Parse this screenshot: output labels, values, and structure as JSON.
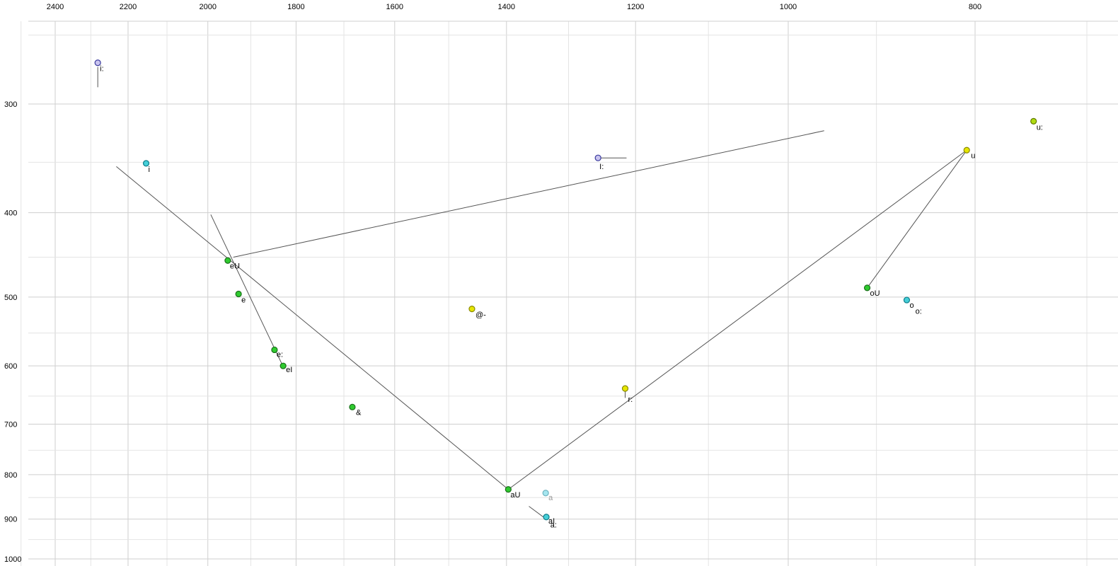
{
  "chart_data": {
    "type": "scatter",
    "title": "",
    "description": "Vowel formant plot (F2 horizontal reversed log scale in Hz, F1 vertical log scale in Hz) with diphthong trajectory lines",
    "x_axis": {
      "unit": "Hz",
      "scale": "log",
      "reversed": true,
      "major_ticks": [
        2400,
        2200,
        2000,
        1800,
        1600,
        1400,
        1200,
        1000,
        800
      ],
      "minor_step": 100,
      "minor_from": 2500,
      "minor_to": 700
    },
    "y_axis": {
      "unit": "Hz",
      "scale": "log",
      "reversed": false,
      "major_ticks": [
        300,
        400,
        500,
        600,
        700,
        800,
        900,
        1000
      ],
      "minor_step": 50,
      "minor_from": 250,
      "minor_to": 1000
    },
    "grid": true,
    "style": {
      "background": "#ffffff",
      "grid_minor_color": "#e4e4e4",
      "grid_major_color": "#cfcfcf",
      "trace_color": "#555555",
      "tick_label_color": "#000000",
      "point_label_color": "#000000"
    },
    "palette": {
      "green": {
        "fill": "#2fca2f",
        "stroke": "#1a6e1a"
      },
      "yellow": {
        "fill": "#e6e600",
        "stroke": "#8a8a00"
      },
      "yellowgreen": {
        "fill": "#b0dc10",
        "stroke": "#5f7a00"
      },
      "cyan": {
        "fill": "#45cfd8",
        "stroke": "#0e7d8a"
      },
      "lightcyan": {
        "fill": "#a5e6ef",
        "stroke": "#6fb3c0"
      },
      "lavender": {
        "fill": "#c9c4ef",
        "stroke": "#3b3b9e"
      }
    },
    "points": [
      {
        "label": "i:",
        "f2": 2281,
        "f1": 269,
        "color_key": "lavender",
        "marker": true,
        "label_offset": [
          3,
          12
        ]
      },
      {
        "label": "i",
        "f2": 2153,
        "f1": 351,
        "color_key": "cyan",
        "marker": true,
        "label_offset": [
          3,
          12
        ]
      },
      {
        "label": "I:",
        "f2": 1255,
        "f1": 346,
        "color_key": "lavender",
        "marker": true,
        "label_offset": [
          2,
          16
        ]
      },
      {
        "label": "u:",
        "f2": 746,
        "f1": 314,
        "color_key": "yellowgreen",
        "marker": true,
        "label_offset": [
          4,
          12
        ]
      },
      {
        "label": "u",
        "f2": 808,
        "f1": 339,
        "color_key": "yellow",
        "marker": true,
        "label_offset": [
          6,
          11
        ]
      },
      {
        "label": "eU",
        "f2": 1953,
        "f1": 454,
        "color_key": "green",
        "marker": true,
        "label_offset": [
          3,
          11
        ]
      },
      {
        "label": "e",
        "f2": 1928,
        "f1": 496,
        "color_key": "green",
        "marker": true,
        "label_offset": [
          4,
          12
        ]
      },
      {
        "label": "@-",
        "f2": 1459,
        "f1": 516,
        "color_key": "yellow",
        "marker": true,
        "label_offset": [
          5,
          12
        ]
      },
      {
        "label": "e:",
        "f2": 1847,
        "f1": 575,
        "color_key": "green",
        "marker": true,
        "label_offset": [
          3,
          10
        ]
      },
      {
        "label": "eI",
        "f2": 1828,
        "f1": 600,
        "color_key": "green",
        "marker": true,
        "label_offset": [
          4,
          9
        ]
      },
      {
        "label": "r:",
        "f2": 1215,
        "f1": 637,
        "color_key": "yellow",
        "marker": true,
        "label_offset": [
          4,
          19
        ]
      },
      {
        "label": "&",
        "f2": 1683,
        "f1": 669,
        "color_key": "green",
        "marker": true,
        "label_offset": [
          5,
          11
        ]
      },
      {
        "label": "aU",
        "f2": 1397,
        "f1": 832,
        "color_key": "green",
        "marker": true,
        "label_offset": [
          3,
          11
        ]
      },
      {
        "label": "a",
        "f2": 1336,
        "f1": 840,
        "color_key": "lightcyan",
        "marker": true,
        "label_offset": [
          4,
          10
        ],
        "label_color": "#9a9a9a"
      },
      {
        "label": "aI",
        "f2": 1335,
        "f1": 895,
        "color_key": "cyan",
        "marker": true,
        "label_offset": [
          3,
          9
        ]
      },
      {
        "label": "a:",
        "f2": 1332,
        "f1": 903,
        "color_key": "cyan",
        "marker": false,
        "label_offset": [
          3,
          10
        ]
      },
      {
        "label": "oU",
        "f2": 910,
        "f1": 488,
        "color_key": "green",
        "marker": true,
        "label_offset": [
          4,
          11
        ]
      },
      {
        "label": "o",
        "f2": 868,
        "f1": 504,
        "color_key": "cyan",
        "marker": true,
        "label_offset": [
          4,
          11
        ]
      },
      {
        "label": "o:",
        "f2": 862,
        "f1": 514,
        "color_key": "cyan",
        "marker": false,
        "label_offset": [
          4,
          9
        ]
      }
    ],
    "segments": [
      {
        "name": "front-closing-trajectory",
        "from": [
          2231,
          354
        ],
        "to": [
          1397,
          832
        ]
      },
      {
        "name": "eU-offglide-trajectory",
        "from": [
          1940,
          450
        ],
        "to": [
          958,
          322
        ]
      },
      {
        "name": "eI-onglide-trajectory",
        "from": [
          1993,
          402
        ],
        "to": [
          1830,
          598
        ]
      },
      {
        "name": "aU-offglide-trajectory",
        "from": [
          1397,
          832
        ],
        "to": [
          808,
          339
        ]
      },
      {
        "name": "oU-offglide-trajectory",
        "from": [
          910,
          488
        ],
        "to": [
          808,
          339
        ]
      },
      {
        "name": "aI-onglide-tail",
        "from": [
          1363,
          870
        ],
        "to": [
          1338,
          897
        ]
      },
      {
        "name": "i-long-tail",
        "from": [
          2281,
          272
        ],
        "to": [
          2281,
          287
        ]
      },
      {
        "name": "I-long-tail",
        "from": [
          1252,
          346
        ],
        "to": [
          1213,
          346
        ]
      },
      {
        "name": "r-long-tail",
        "from": [
          1215,
          640
        ],
        "to": [
          1215,
          653
        ]
      }
    ]
  }
}
